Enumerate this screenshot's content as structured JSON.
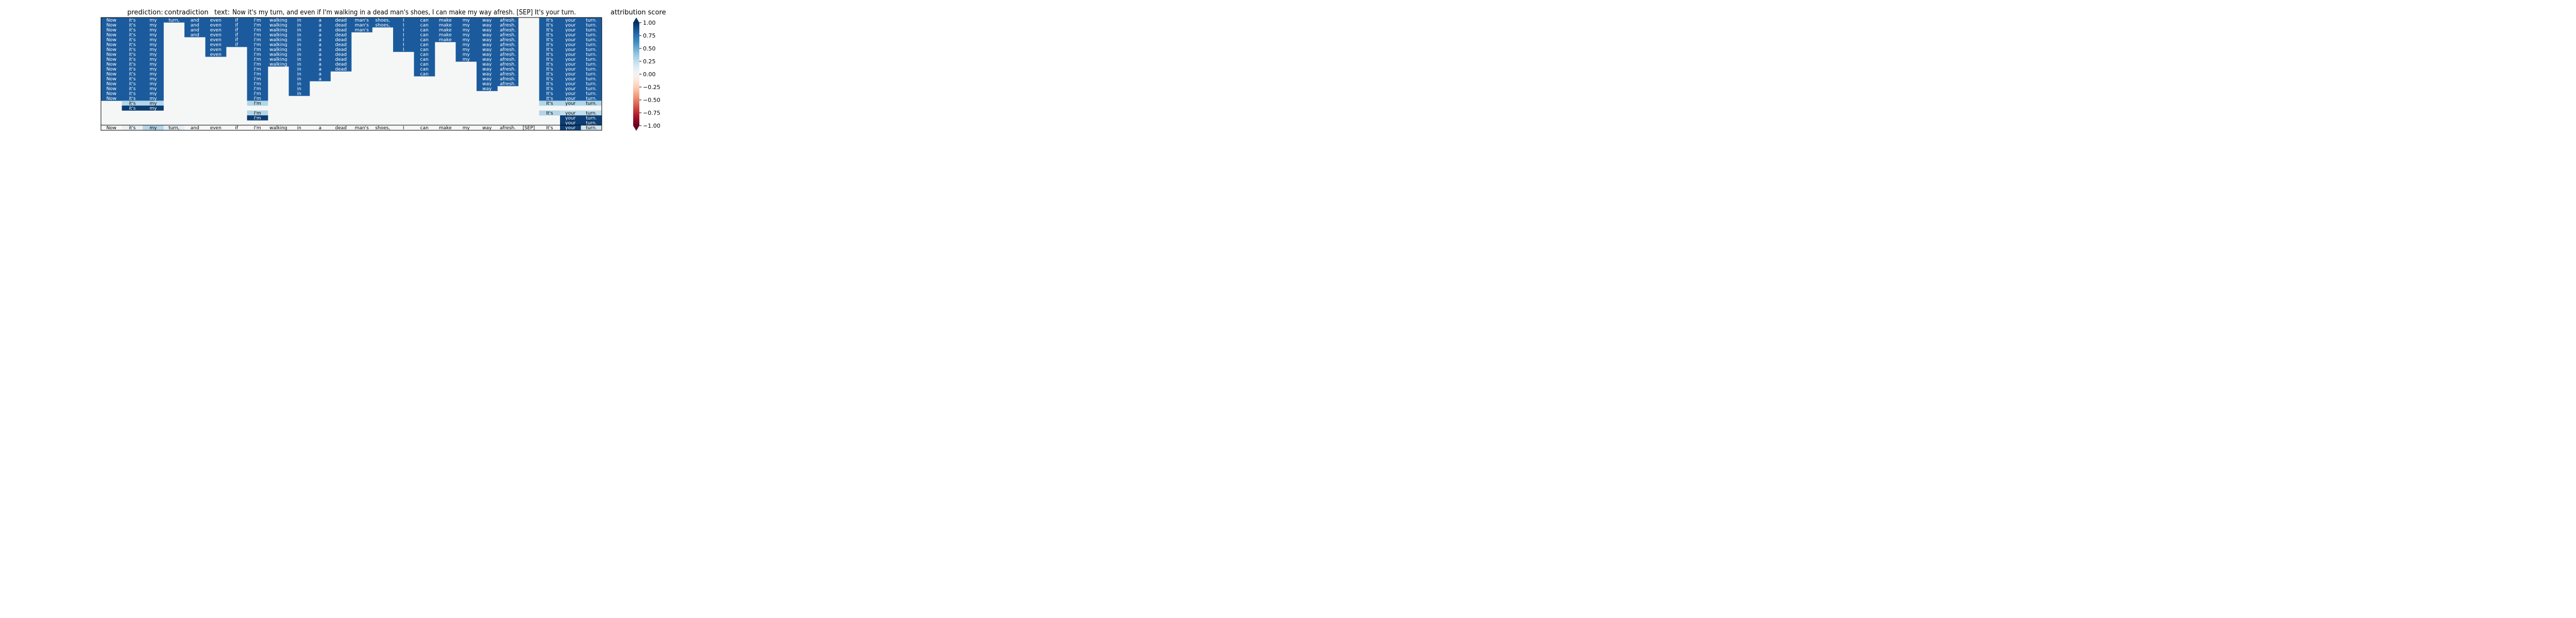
{
  "header": {
    "prediction_label": "prediction:",
    "prediction_value": "contradiction",
    "text_label": "text:",
    "text_value": "Now it's my turn, and even if I'm walking in a dead man's shoes, I can make my way afresh. [SEP] It's your turn."
  },
  "colorbar": {
    "title": "attribution score",
    "ticks": [
      "1.00",
      "0.75",
      "0.50",
      "0.25",
      "0.00",
      "−0.25",
      "−0.50",
      "−0.75",
      "−1.00"
    ],
    "colors": [
      "#67001f",
      "#b2182b",
      "#d6604d",
      "#f4a582",
      "#fddbc7",
      "#f7f7f7",
      "#d1e5f0",
      "#92c5de",
      "#4393c3",
      "#2166ac",
      "#053061"
    ]
  },
  "chart_data": {
    "type": "heatmap",
    "title": "prediction:  contradiction     text:  Now it's my turn, and even if I'm walking in a dead man's shoes, I can make my way afresh. [SEP] It's your turn.",
    "tokens": [
      "Now",
      "it's",
      "my",
      "turn,",
      "and",
      "even",
      "if",
      "I'm",
      "walking",
      "in",
      "a",
      "dead",
      "man's",
      "shoes,",
      "I",
      "can",
      "make",
      "my",
      "way",
      "afresh.",
      "[SEP]",
      "It's",
      "your",
      "turn."
    ],
    "rows": 22,
    "vmin": -1.0,
    "vmax": 1.0,
    "colormap": "RdBu",
    "active_rows": [
      [
        0,
        1,
        2,
        3,
        4,
        5,
        6,
        7,
        8,
        9,
        10,
        11,
        12,
        13,
        14,
        15,
        16,
        17,
        18,
        19,
        21,
        22,
        23
      ],
      [
        0,
        1,
        2,
        4,
        5,
        6,
        7,
        8,
        9,
        10,
        11,
        12,
        13,
        14,
        15,
        16,
        17,
        18,
        19,
        21,
        22,
        23
      ],
      [
        0,
        1,
        2,
        4,
        5,
        6,
        7,
        8,
        9,
        10,
        11,
        12,
        14,
        15,
        16,
        17,
        18,
        19,
        21,
        22,
        23
      ],
      [
        0,
        1,
        2,
        4,
        5,
        6,
        7,
        8,
        9,
        10,
        11,
        14,
        15,
        16,
        17,
        18,
        19,
        21,
        22,
        23
      ],
      [
        0,
        1,
        2,
        5,
        6,
        7,
        8,
        9,
        10,
        11,
        14,
        15,
        16,
        17,
        18,
        19,
        21,
        22,
        23
      ],
      [
        0,
        1,
        2,
        5,
        6,
        7,
        8,
        9,
        10,
        11,
        14,
        15,
        17,
        18,
        19,
        21,
        22,
        23
      ],
      [
        0,
        1,
        2,
        5,
        7,
        8,
        9,
        10,
        11,
        14,
        15,
        17,
        18,
        19,
        21,
        22,
        23
      ],
      [
        0,
        1,
        2,
        5,
        7,
        8,
        9,
        10,
        11,
        15,
        17,
        18,
        19,
        21,
        22,
        23
      ],
      [
        0,
        1,
        2,
        7,
        8,
        9,
        10,
        11,
        15,
        17,
        18,
        19,
        21,
        22,
        23
      ],
      [
        0,
        1,
        2,
        7,
        8,
        9,
        10,
        11,
        15,
        18,
        19,
        21,
        22,
        23
      ],
      [
        0,
        1,
        2,
        7,
        9,
        10,
        11,
        15,
        18,
        19,
        21,
        22,
        23
      ],
      [
        0,
        1,
        2,
        7,
        9,
        10,
        15,
        18,
        19,
        21,
        22,
        23
      ],
      [
        0,
        1,
        2,
        7,
        9,
        10,
        18,
        19,
        21,
        22,
        23
      ],
      [
        0,
        1,
        2,
        7,
        9,
        18,
        19,
        21,
        22,
        23
      ],
      [
        0,
        1,
        2,
        7,
        9,
        18,
        21,
        22,
        23
      ],
      [
        0,
        1,
        2,
        7,
        9,
        21,
        22,
        23
      ],
      [
        0,
        1,
        2,
        7,
        21,
        22,
        23
      ],
      [
        1,
        2,
        7,
        21,
        22,
        23
      ],
      [
        1,
        2
      ],
      [
        7,
        21,
        22,
        23
      ],
      [
        7,
        22,
        23
      ],
      [
        22,
        23
      ]
    ],
    "row_values": [
      0.84,
      0.84,
      0.84,
      0.84,
      0.84,
      0.84,
      0.84,
      0.84,
      0.84,
      0.84,
      0.84,
      0.84,
      0.84,
      0.84,
      0.84,
      0.84,
      0.84,
      0.3,
      0.95,
      0.3,
      0.95,
      0.95
    ],
    "cell_overrides": [
      {
        "row": 19,
        "col": 22,
        "value": 0.25
      },
      {
        "row": 19,
        "col": 23,
        "value": 0.25
      }
    ],
    "bottom_row_values": [
      0.0,
      0.08,
      0.3,
      0.1,
      0.0,
      0.0,
      0.0,
      0.0,
      0.0,
      0.0,
      0.0,
      0.0,
      0.0,
      0.0,
      0.0,
      0.0,
      0.0,
      0.0,
      0.0,
      0.0,
      0.0,
      0.0,
      0.95,
      0.2
    ],
    "colorbar_range": [
      -1.0,
      1.0
    ],
    "colorbar_ticks": [
      1.0,
      0.75,
      0.5,
      0.25,
      0.0,
      -0.25,
      -0.5,
      -0.75,
      -1.0
    ]
  }
}
